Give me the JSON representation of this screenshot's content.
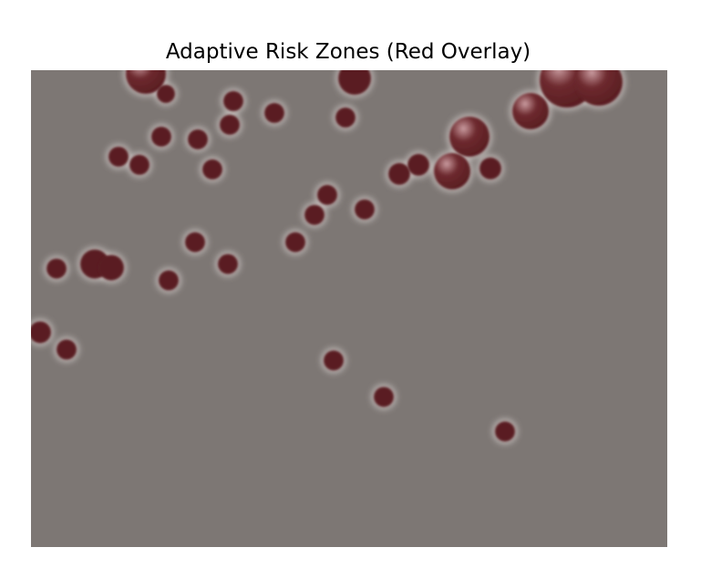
{
  "chart_data": {
    "type": "heatmap",
    "title": "Adaptive Risk Zones (Red Overlay)",
    "xlabel": "",
    "ylabel": "",
    "xlim": [
      0,
      698
    ],
    "ylim": [
      0,
      524
    ],
    "axes_visible": false,
    "grid": false,
    "colors": {
      "background": "#7d7774",
      "zone": "#5a1e22",
      "zone_highlight": "#c89a9e",
      "halo": "#ece6e3"
    },
    "zones": [
      {
        "x": 126,
        "y": 4,
        "r": 22,
        "intensity": 0.9
      },
      {
        "x": 148,
        "y": 26,
        "r": 10,
        "intensity": 0.6
      },
      {
        "x": 355,
        "y": 9,
        "r": 18,
        "intensity": 0.7
      },
      {
        "x": 222,
        "y": 34,
        "r": 11,
        "intensity": 0.6
      },
      {
        "x": 218,
        "y": 60,
        "r": 11,
        "intensity": 0.6
      },
      {
        "x": 267,
        "y": 47,
        "r": 11,
        "intensity": 0.6
      },
      {
        "x": 345,
        "y": 52,
        "r": 11,
        "intensity": 0.6
      },
      {
        "x": 143,
        "y": 73,
        "r": 11,
        "intensity": 0.6
      },
      {
        "x": 183,
        "y": 76,
        "r": 11,
        "intensity": 0.6
      },
      {
        "x": 96,
        "y": 95,
        "r": 11,
        "intensity": 0.6
      },
      {
        "x": 119,
        "y": 104,
        "r": 11,
        "intensity": 0.6
      },
      {
        "x": 199,
        "y": 109,
        "r": 11,
        "intensity": 0.6
      },
      {
        "x": 588,
        "y": 11,
        "r": 30,
        "intensity": 1.0
      },
      {
        "x": 623,
        "y": 13,
        "r": 26,
        "intensity": 0.9
      },
      {
        "x": 548,
        "y": 45,
        "r": 20,
        "intensity": 0.8
      },
      {
        "x": 481,
        "y": 73,
        "r": 22,
        "intensity": 0.85
      },
      {
        "x": 504,
        "y": 108,
        "r": 12,
        "intensity": 0.6
      },
      {
        "x": 404,
        "y": 114,
        "r": 12,
        "intensity": 0.6
      },
      {
        "x": 425,
        "y": 104,
        "r": 12,
        "intensity": 0.6
      },
      {
        "x": 462,
        "y": 111,
        "r": 20,
        "intensity": 0.8
      },
      {
        "x": 325,
        "y": 137,
        "r": 11,
        "intensity": 0.6
      },
      {
        "x": 311,
        "y": 159,
        "r": 11,
        "intensity": 0.6
      },
      {
        "x": 366,
        "y": 153,
        "r": 11,
        "intensity": 0.6
      },
      {
        "x": 290,
        "y": 189,
        "r": 11,
        "intensity": 0.6
      },
      {
        "x": 180,
        "y": 189,
        "r": 11,
        "intensity": 0.6
      },
      {
        "x": 216,
        "y": 213,
        "r": 11,
        "intensity": 0.6
      },
      {
        "x": 151,
        "y": 231,
        "r": 11,
        "intensity": 0.6
      },
      {
        "x": 28,
        "y": 218,
        "r": 11,
        "intensity": 0.6
      },
      {
        "x": 70,
        "y": 213,
        "r": 16,
        "intensity": 0.7
      },
      {
        "x": 88,
        "y": 217,
        "r": 14,
        "intensity": 0.7
      },
      {
        "x": 10,
        "y": 288,
        "r": 12,
        "intensity": 0.6
      },
      {
        "x": 39,
        "y": 307,
        "r": 11,
        "intensity": 0.6
      },
      {
        "x": 332,
        "y": 319,
        "r": 11,
        "intensity": 0.6
      },
      {
        "x": 387,
        "y": 359,
        "r": 11,
        "intensity": 0.6
      },
      {
        "x": 520,
        "y": 397,
        "r": 11,
        "intensity": 0.6
      }
    ]
  }
}
